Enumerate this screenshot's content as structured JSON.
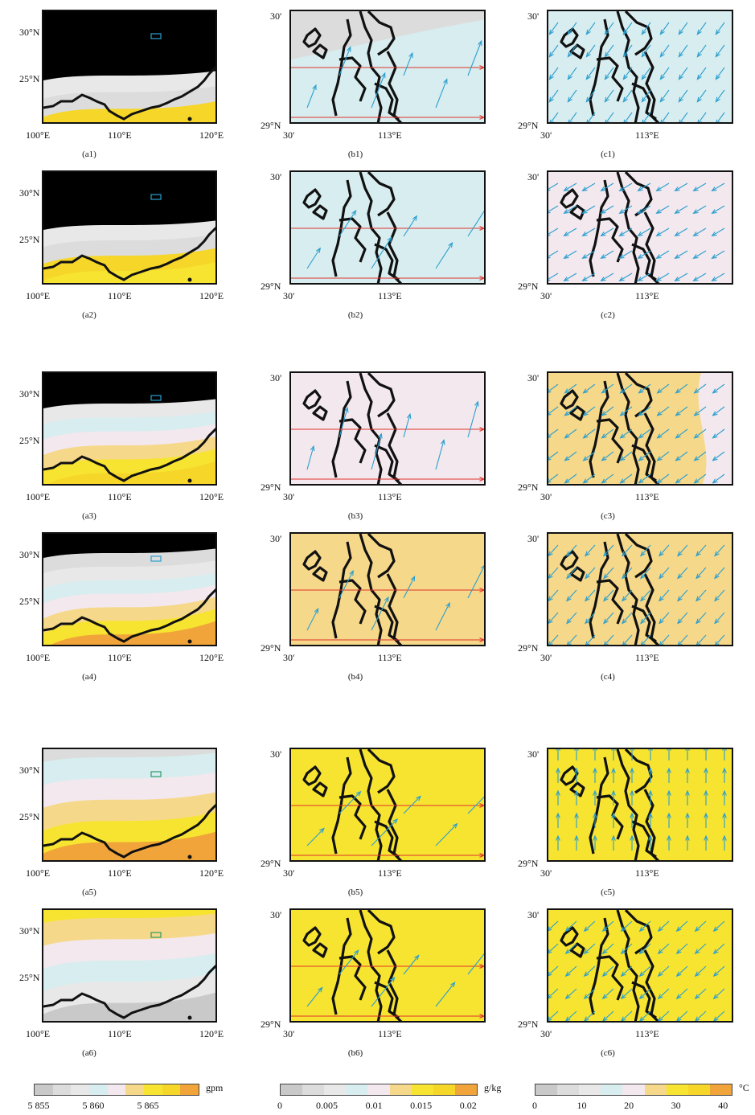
{
  "colors": {
    "grey_dark": "#c9c9c9",
    "grey_mid": "#dcdcdc",
    "grey_light": "#e8e8e8",
    "cyan_light": "#d8edef",
    "pink_light": "#f3e8ee",
    "tan": "#f6d88a",
    "yellow": "#f7e431",
    "yellow_deep": "#f5d629",
    "orange": "#f1a43a",
    "wind_blue": "#2a9fcf",
    "wind_red": "#e0322b",
    "box_blue": "#2a9fcf",
    "box_green": "#2e9a6a"
  },
  "col_a": {
    "xticks": [
      "100°E",
      "110°E",
      "120°E"
    ],
    "yticks": [
      "30°N",
      "25°N"
    ],
    "panels": [
      {
        "label": "(a1)",
        "bg": "white",
        "bands": [
          "grey_light",
          "grey_mid",
          "yellow_deep"
        ],
        "box": "box_blue"
      },
      {
        "label": "(a2)",
        "bg": "white",
        "bands": [
          "grey_light",
          "grey_mid",
          "yellow_deep",
          "yellow"
        ],
        "box": "box_blue"
      },
      {
        "label": "(a3)",
        "bg": "white",
        "bands": [
          "grey_light",
          "cyan_light",
          "pink_light",
          "tan",
          "yellow",
          "yellow_deep"
        ],
        "box": "box_blue"
      },
      {
        "label": "(a4)",
        "bg": "white",
        "bands": [
          "grey_mid",
          "grey_light",
          "cyan_light",
          "pink_light",
          "tan",
          "yellow",
          "orange"
        ],
        "box": "box_blue"
      },
      {
        "label": "(a5)",
        "bg": "grey_mid",
        "bands": [
          "cyan_light",
          "pink_light",
          "tan",
          "yellow",
          "orange"
        ],
        "box": "box_green"
      },
      {
        "label": "(a6)",
        "bg": "yellow",
        "bands": [
          "tan",
          "pink_light",
          "cyan_light",
          "grey_light",
          "grey_dark"
        ],
        "box": "box_green"
      }
    ]
  },
  "col_b": {
    "ytop": "30'",
    "ybottom": "29°N",
    "xleft": "30'",
    "xmid": "113°E",
    "panels": [
      {
        "label": "(b1)",
        "fill": "cyan_light",
        "fill_top": "grey_mid"
      },
      {
        "label": "(b2)",
        "fill": "cyan_light"
      },
      {
        "label": "(b3)",
        "fill": "pink_light"
      },
      {
        "label": "(b4)",
        "fill": "tan"
      },
      {
        "label": "(b5)",
        "fill": "yellow"
      },
      {
        "label": "(b6)",
        "fill": "yellow"
      }
    ]
  },
  "col_c": {
    "ytop": "30'",
    "ybottom": "29°N",
    "xleft": "30'",
    "xmid": "113°E",
    "panels": [
      {
        "label": "(c1)",
        "fill": "cyan_light"
      },
      {
        "label": "(c2)",
        "fill": "pink_light"
      },
      {
        "label": "(c3)",
        "fill": "tan",
        "fill_right": "pink_light"
      },
      {
        "label": "(c4)",
        "fill": "tan"
      },
      {
        "label": "(c5)",
        "fill": "yellow"
      },
      {
        "label": "(c6)",
        "fill": "yellow"
      }
    ]
  },
  "colorbars": [
    {
      "unit": "gpm",
      "ticks": [
        "5 855",
        "5 860",
        "5 865"
      ],
      "swatches": [
        "grey_dark",
        "grey_mid",
        "grey_light",
        "cyan_light",
        "pink_light",
        "tan",
        "yellow",
        "yellow_deep",
        "orange"
      ]
    },
    {
      "unit": "g/kg",
      "ticks": [
        "0",
        "0.005",
        "0.01",
        "0.015",
        "0.02"
      ],
      "swatches": [
        "grey_dark",
        "grey_mid",
        "grey_light",
        "cyan_light",
        "pink_light",
        "tan",
        "yellow",
        "yellow_deep",
        "orange"
      ]
    },
    {
      "unit": "°C",
      "ticks": [
        "0",
        "10",
        "20",
        "30",
        "40"
      ],
      "swatches": [
        "grey_dark",
        "grey_mid",
        "grey_light",
        "cyan_light",
        "pink_light",
        "tan",
        "yellow",
        "yellow_deep",
        "orange"
      ]
    }
  ]
}
